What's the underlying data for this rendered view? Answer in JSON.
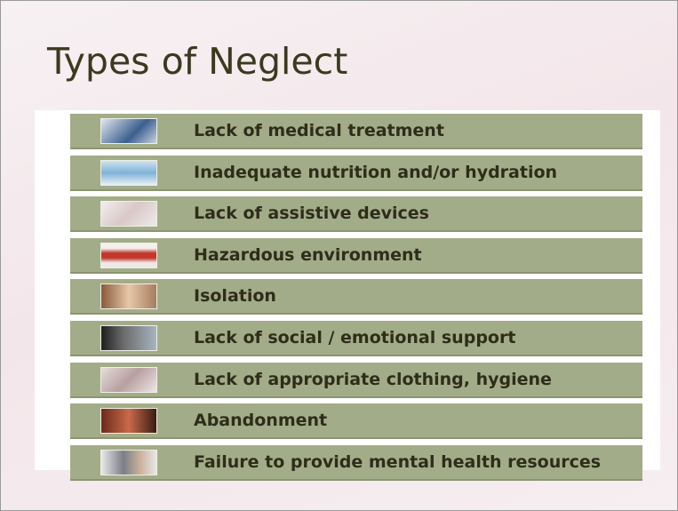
{
  "title": "Types of Neglect",
  "items": [
    {
      "label": "Lack of medical treatment"
    },
    {
      "label": "Inadequate nutrition and/or hydration"
    },
    {
      "label": "Lack of assistive devices"
    },
    {
      "label": "Hazardous environment"
    },
    {
      "label": "Isolation"
    },
    {
      "label": "Lack of social / emotional support"
    },
    {
      "label": "Lack of appropriate clothing, hygiene"
    },
    {
      "label": "Abandonment"
    },
    {
      "label": "Failure to provide mental health resources"
    }
  ]
}
